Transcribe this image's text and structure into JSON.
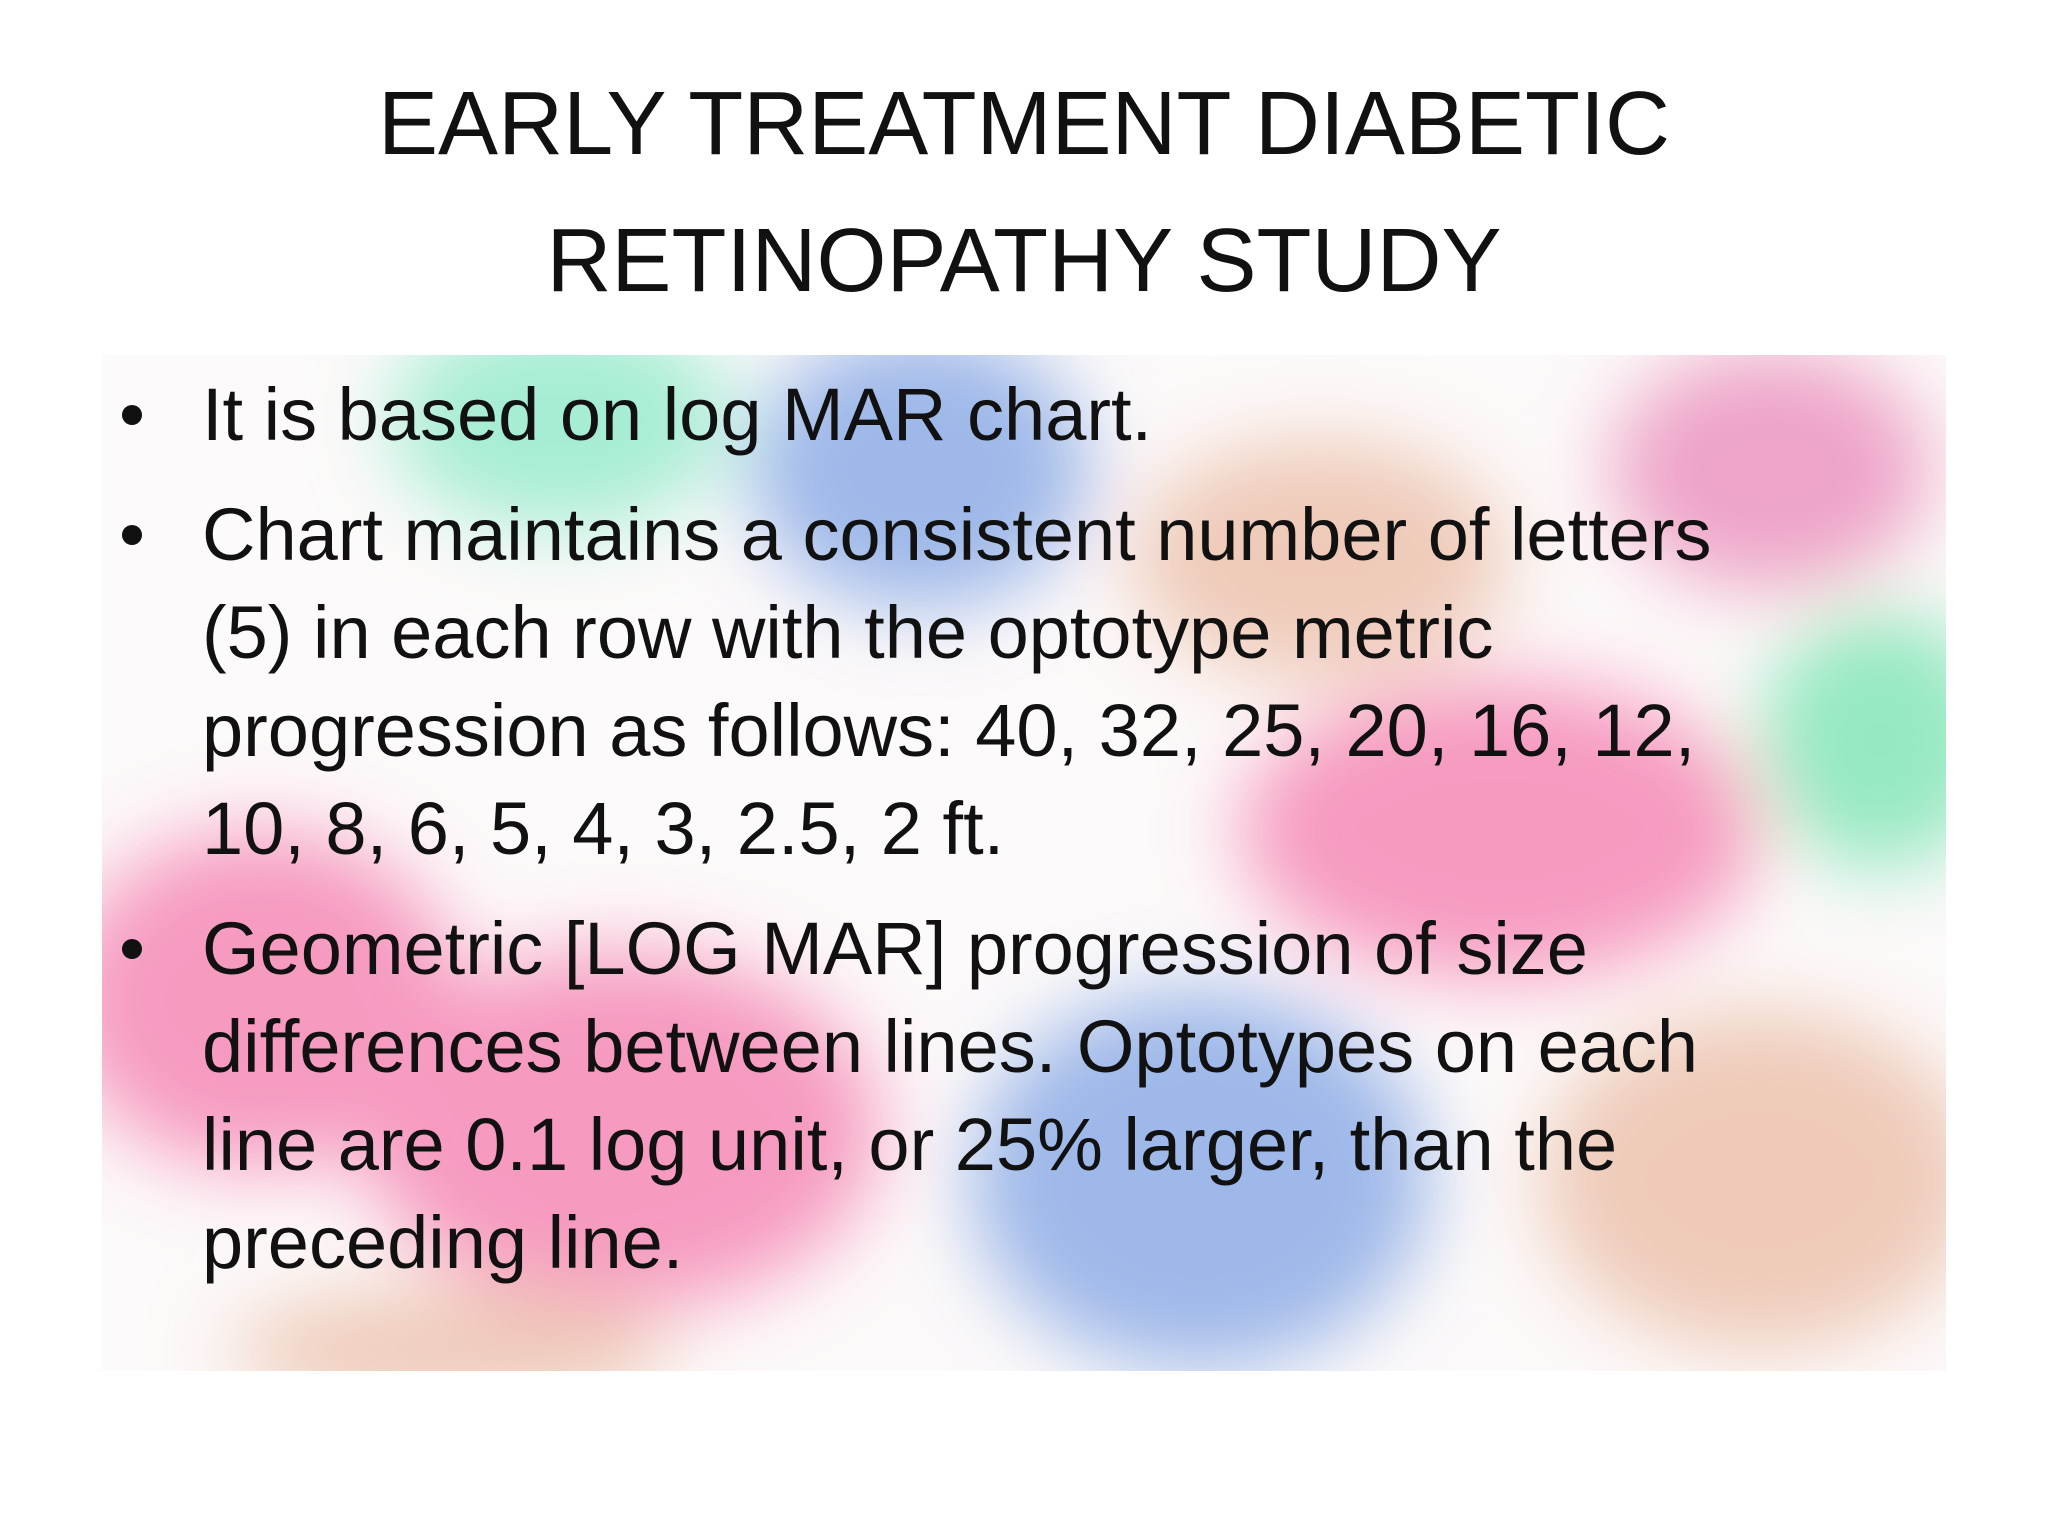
{
  "title": {
    "lines": [
      "EARLY TREATMENT DIABETIC",
      "RETINOPATHY STUDY"
    ]
  },
  "bullets": [
    {
      "lines": [
        "It is based on log MAR chart."
      ]
    },
    {
      "lines": [
        "Chart maintains a consistent number of letters",
        "(5) in each row with the optotype metric",
        "progression as follows: 40, 32, 25, 20, 16, 12,",
        "10, 8, 6, 5, 4, 3, 2.5, 2 ft."
      ]
    },
    {
      "lines": [
        "Geometric [LOG MAR] progression of size",
        "differences between lines. Optotypes on each",
        "line are 0.1 log unit, or 25% larger, than the",
        "preceding line."
      ]
    }
  ]
}
